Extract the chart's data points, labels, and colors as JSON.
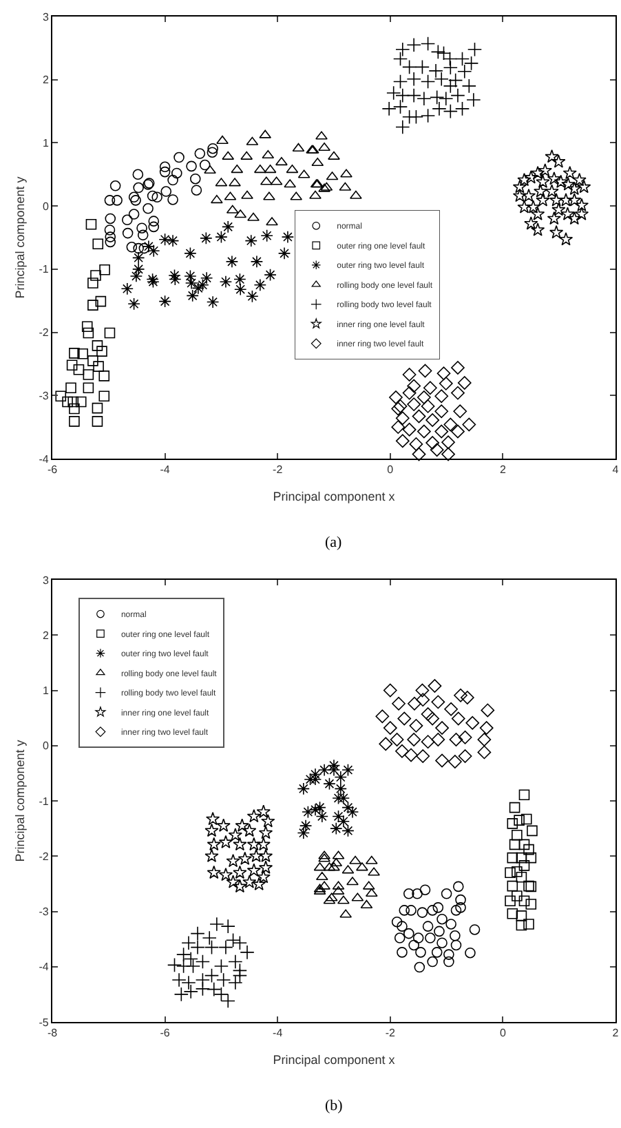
{
  "chart_data": [
    {
      "type": "scatter",
      "xlabel": "Principal component x",
      "ylabel": "Principal component y",
      "annotations": [
        "(a)"
      ],
      "xlim": [
        -6,
        4
      ],
      "xticks": [
        -6,
        -4,
        -2,
        0,
        2,
        4
      ],
      "ylim": [
        -4,
        3
      ],
      "yticks": [
        -4,
        -3,
        -2,
        -1,
        0,
        1,
        2,
        3
      ],
      "grid": false,
      "legend": "center",
      "series": [
        {
          "name": "normal",
          "color": "#000000",
          "marker": "circle",
          "x": [
            -4.88,
            -4.98,
            -4.85,
            -4.97,
            -4.98,
            -4.97,
            -4.97,
            -4.67,
            -4.66,
            -4.59,
            -4.55,
            -4.52,
            -4.48,
            -4.47,
            -4.41,
            -4.39,
            -4.3,
            -4.3,
            -4.28,
            -4.22,
            -4.14,
            -4.2,
            -4.2,
            -4.0,
            -4.0,
            -3.98,
            -3.86,
            -3.86,
            -3.79,
            -3.75,
            -3.53,
            -3.46,
            -3.44,
            -3.38,
            -3.29,
            -3.16,
            -3.15,
            -4.47,
            -4.37,
            -4.55
          ],
          "values": [
            0.32,
            0.09,
            0.09,
            -0.2,
            -0.38,
            -0.49,
            -0.57,
            -0.22,
            -0.43,
            -0.65,
            -0.13,
            0.09,
            0.5,
            0.29,
            -0.35,
            -0.46,
            0.34,
            -0.04,
            0.36,
            0.16,
            0.14,
            -0.24,
            -0.33,
            0.62,
            0.54,
            0.23,
            0.1,
            0.41,
            0.52,
            0.77,
            0.63,
            0.43,
            0.25,
            0.83,
            0.65,
            0.85,
            0.91,
            -0.67,
            -0.67,
            0.14
          ]
        },
        {
          "name": "outer ring one level fault",
          "color": "#000000",
          "marker": "square",
          "x": [
            -5.31,
            -5.19,
            -5.07,
            -5.23,
            -5.28,
            -5.28,
            -5.14,
            -5.38,
            -5.36,
            -4.98,
            -5.61,
            -5.2,
            -5.12,
            -5.46,
            -5.65,
            -5.28,
            -5.53,
            -5.36,
            -5.18,
            -5.08,
            -5.08,
            -5.85,
            -5.73,
            -5.63,
            -5.49,
            -5.61,
            -5.2,
            -5.61,
            -5.2,
            -5.67,
            -5.36
          ],
          "values": [
            -0.29,
            -0.6,
            -1.01,
            -1.1,
            -1.22,
            -1.57,
            -1.51,
            -1.91,
            -2.01,
            -2.01,
            -2.33,
            -2.21,
            -2.3,
            -2.34,
            -2.52,
            -2.45,
            -2.59,
            -2.67,
            -2.54,
            -2.69,
            -3.01,
            -3.01,
            -3.1,
            -3.1,
            -3.1,
            -3.21,
            -3.2,
            -3.41,
            -3.41,
            -2.88,
            -2.88
          ]
        },
        {
          "name": "outer ring two level fault",
          "color": "#000000",
          "x": [
            -4.67,
            -4.55,
            -4.51,
            -4.47,
            -4.47,
            -4.29,
            -4.2,
            -4.22,
            -4.21,
            -4.0,
            -4.0,
            -3.86,
            -3.83,
            -3.82,
            -3.55,
            -3.55,
            -3.53,
            -3.51,
            -3.41,
            -3.33,
            -3.26,
            -3.27,
            -3.15,
            -3.0,
            -2.92,
            -2.88,
            -2.81,
            -2.67,
            -2.66,
            -2.47,
            -2.45,
            -2.37,
            -2.31,
            -2.19,
            -2.13,
            -1.88,
            -1.82
          ],
          "values": [
            -1.31,
            -1.55,
            -1.11,
            -1.0,
            -0.82,
            -0.64,
            -0.71,
            -1.16,
            -1.2,
            -1.51,
            -0.53,
            -0.55,
            -1.1,
            -1.16,
            -0.75,
            -1.11,
            -1.22,
            -1.42,
            -1.3,
            -1.25,
            -1.14,
            -0.51,
            -1.52,
            -0.49,
            -1.2,
            -0.33,
            -0.88,
            -1.16,
            -1.32,
            -0.55,
            -1.43,
            -0.88,
            -1.25,
            -0.47,
            -1.09,
            -0.75,
            -0.49
          ]
        },
        {
          "name": "rolling body one level fault",
          "color": "#000000",
          "marker": "triangle",
          "x": [
            -2.98,
            -2.45,
            -2.22,
            -1.22,
            -2.88,
            -2.55,
            -2.17,
            -1.63,
            -1.37,
            -3.2,
            -2.72,
            -2.31,
            -2.13,
            -1.93,
            -1.74,
            -1.29,
            -3.0,
            -2.76,
            -2.2,
            -2.02,
            -1.78,
            -1.29,
            -3.08,
            -2.84,
            -2.54,
            -2.15,
            -1.67,
            -1.33,
            -2.8,
            -2.66,
            -2.43,
            -2.1,
            -1.17,
            -1.39,
            -1.17,
            -1.0,
            -1.53,
            -1.03,
            -0.78,
            -1.31,
            -1.13,
            -0.8,
            -0.61
          ],
          "values": [
            1.03,
            1.01,
            1.12,
            1.1,
            0.78,
            0.78,
            0.8,
            0.91,
            0.88,
            0.56,
            0.57,
            0.57,
            0.57,
            0.69,
            0.57,
            0.68,
            0.36,
            0.36,
            0.38,
            0.38,
            0.34,
            0.34,
            0.09,
            0.14,
            0.16,
            0.14,
            0.14,
            0.16,
            -0.07,
            -0.14,
            -0.19,
            -0.26,
            0.27,
            0.88,
            0.92,
            0.78,
            0.49,
            0.46,
            0.5,
            0.34,
            0.29,
            0.29,
            0.16
          ]
        },
        {
          "name": "rolling body two level fault",
          "color": "#000000",
          "marker": "cross",
          "x": [
            0.22,
            0.42,
            0.67,
            0.85,
            1.06,
            1.28,
            1.5,
            0.18,
            0.34,
            0.57,
            0.81,
            1.07,
            1.32,
            1.44,
            0.18,
            0.42,
            0.67,
            0.91,
            1.16,
            1.4,
            0.06,
            0.22,
            0.42,
            0.6,
            0.83,
            0.99,
            1.2,
            1.48,
            -0.02,
            0.18,
            0.34,
            0.46,
            0.67,
            0.87,
            1.07,
            1.28,
            0.22,
            0.95,
            1.07
          ],
          "values": [
            2.48,
            2.55,
            2.57,
            2.44,
            2.33,
            2.33,
            2.48,
            2.33,
            2.2,
            2.2,
            2.14,
            2.19,
            2.13,
            2.26,
            1.97,
            2.01,
            1.97,
            2.01,
            1.99,
            1.9,
            1.79,
            1.75,
            1.75,
            1.7,
            1.72,
            1.7,
            1.75,
            1.68,
            1.54,
            1.57,
            1.41,
            1.41,
            1.43,
            1.54,
            1.5,
            1.54,
            1.25,
            2.42,
            1.9
          ]
        },
        {
          "name": "inner ring one level fault",
          "color": "#000000",
          "marker": "star",
          "x": [
            2.87,
            2.99,
            3.19,
            3.36,
            3.44,
            2.3,
            2.38,
            2.5,
            2.62,
            2.75,
            2.71,
            2.91,
            3.03,
            3.16,
            3.27,
            2.3,
            2.46,
            2.67,
            2.87,
            2.71,
            2.95,
            3.12,
            3.27,
            3.4,
            3.4,
            3.15,
            2.99,
            2.91,
            2.62,
            2.5,
            2.62,
            2.95,
            3.12,
            3.27,
            2.54,
            2.38
          ],
          "values": [
            0.78,
            0.7,
            0.52,
            0.41,
            0.3,
            0.3,
            0.41,
            0.45,
            0.52,
            0.56,
            0.38,
            0.43,
            0.38,
            0.34,
            0.27,
            0.16,
            0.16,
            0.23,
            0.23,
            0.09,
            0.09,
            0.09,
            0.09,
            0.01,
            -0.13,
            -0.13,
            -0.06,
            -0.2,
            -0.13,
            -0.28,
            -0.38,
            -0.42,
            -0.53,
            -0.2,
            -0.02,
            -0.02
          ]
        },
        {
          "name": "inner ring two level fault",
          "color": "#000000",
          "marker": "diamond",
          "x": [
            0.34,
            0.62,
            0.95,
            1.2,
            0.42,
            0.71,
            0.99,
            1.32,
            0.1,
            0.34,
            0.6,
            0.91,
            1.2,
            0.14,
            0.42,
            0.67,
            0.91,
            1.24,
            0.22,
            0.51,
            0.75,
            1.07,
            1.4,
            0.14,
            0.34,
            0.6,
            0.91,
            1.2,
            0.22,
            0.46,
            0.75,
            1.03,
            0.51,
            0.83,
            1.03,
            0.18
          ],
          "values": [
            -2.67,
            -2.61,
            -2.65,
            -2.56,
            -2.85,
            -2.88,
            -2.81,
            -2.8,
            -3.03,
            -2.96,
            -3.03,
            -3.01,
            -2.96,
            -3.21,
            -3.14,
            -3.17,
            -3.25,
            -3.25,
            -3.36,
            -3.33,
            -3.39,
            -3.46,
            -3.46,
            -3.5,
            -3.54,
            -3.57,
            -3.57,
            -3.57,
            -3.72,
            -3.77,
            -3.75,
            -3.74,
            -3.93,
            -3.86,
            -3.93,
            -3.17
          ]
        }
      ]
    },
    {
      "type": "scatter",
      "xlabel": "Principal component x",
      "ylabel": "Principal component y",
      "annotations": [
        "(b)"
      ],
      "xlim": [
        -8,
        2
      ],
      "xticks": [
        -8,
        -6,
        -4,
        -2,
        0,
        2
      ],
      "ylim": [
        -5,
        3
      ],
      "yticks": [
        -5,
        -4,
        -3,
        -2,
        -1,
        0,
        1,
        2,
        3
      ],
      "grid": false,
      "legend": "top left",
      "series": [
        {
          "name": "normal",
          "color": "#000000",
          "marker": "circle",
          "x": [
            -1.88,
            -1.79,
            -1.83,
            -1.79,
            -1.67,
            -1.63,
            -1.67,
            -1.58,
            -1.52,
            -1.46,
            -1.38,
            -1.43,
            -1.33,
            -1.29,
            -1.25,
            -1.15,
            -1.08,
            -1.13,
            -1.08,
            -1.0,
            -0.92,
            -0.96,
            -0.85,
            -0.83,
            -0.79,
            -0.75,
            -0.75,
            -0.96,
            -1.25,
            -1.48,
            -0.5,
            -0.58,
            -1.75,
            -1.5,
            -1.17,
            -0.83
          ],
          "values": [
            -3.19,
            -3.27,
            -3.48,
            -3.74,
            -2.68,
            -2.98,
            -3.4,
            -3.61,
            -2.68,
            -3.74,
            -2.61,
            -3.02,
            -3.27,
            -3.48,
            -2.98,
            -2.93,
            -3.14,
            -3.36,
            -3.57,
            -2.68,
            -3.23,
            -3.78,
            -3.44,
            -3.61,
            -2.55,
            -2.79,
            -2.93,
            -3.91,
            -3.91,
            -4.01,
            -3.33,
            -3.75,
            -2.98,
            -3.48,
            -3.74,
            -2.98
          ]
        },
        {
          "name": "outer ring one level fault",
          "color": "#000000",
          "marker": "square",
          "x": [
            0.38,
            0.21,
            0.17,
            0.29,
            0.42,
            0.52,
            0.25,
            0.38,
            0.46,
            0.17,
            0.33,
            0.5,
            0.13,
            0.25,
            0.46,
            0.17,
            0.33,
            0.5,
            0.25,
            0.13,
            0.38,
            0.5,
            0.17,
            0.33,
            0.46,
            0.33,
            0.21,
            0.38
          ],
          "values": [
            -0.89,
            -1.12,
            -1.41,
            -1.35,
            -1.33,
            -1.54,
            -1.62,
            -1.79,
            -1.88,
            -2.03,
            -2.03,
            -2.03,
            -2.3,
            -2.28,
            -2.54,
            -2.54,
            -2.38,
            -2.55,
            -2.72,
            -2.81,
            -2.81,
            -2.87,
            -3.04,
            -3.08,
            -3.23,
            -3.25,
            -1.79,
            -2.17
          ]
        },
        {
          "name": "outer ring two level fault",
          "color": "#000000",
          "x": [
            -3.54,
            -3.42,
            -3.33,
            -3.17,
            -3.0,
            -3.46,
            -3.33,
            -3.21,
            -3.5,
            -3.54,
            -3.08,
            -2.92,
            -2.92,
            -3.25,
            -3.0,
            -2.88,
            -2.75,
            -2.88,
            -2.83,
            -2.75,
            -2.67,
            -2.83,
            -2.75,
            -2.96,
            -3.33
          ],
          "values": [
            -0.78,
            -0.61,
            -0.52,
            -0.44,
            -0.36,
            -1.2,
            -1.16,
            -1.28,
            -1.45,
            -1.58,
            -0.69,
            -0.95,
            -1.28,
            -1.12,
            -0.44,
            -0.57,
            -0.44,
            -0.78,
            -0.95,
            -1.12,
            -1.2,
            -1.37,
            -1.54,
            -1.5,
            -0.61
          ]
        },
        {
          "name": "rolling body one level fault",
          "color": "#000000",
          "marker": "triangle",
          "x": [
            -3.17,
            -3.08,
            -3.21,
            -3.25,
            -3.08,
            -2.96,
            -2.92,
            -3.17,
            -2.92,
            -2.62,
            -2.33,
            -3.25,
            -3.0,
            -2.75,
            -2.5,
            -2.29,
            -3.17,
            -2.92,
            -2.67,
            -2.38,
            -3.25,
            -3.04,
            -2.83,
            -2.58,
            -2.33,
            -2.79,
            -2.42
          ],
          "values": [
            -2.05,
            -2.21,
            -2.38,
            -2.6,
            -2.81,
            -2.13,
            -2.64,
            -2.0,
            -2.0,
            -2.09,
            -2.09,
            -2.21,
            -2.21,
            -2.26,
            -2.21,
            -2.3,
            -2.55,
            -2.55,
            -2.47,
            -2.55,
            -2.64,
            -2.76,
            -2.81,
            -2.76,
            -2.68,
            -3.06,
            -2.89
          ]
        },
        {
          "name": "rolling body two level fault",
          "color": "#000000",
          "marker": "cross",
          "x": [
            -5.08,
            -4.88,
            -5.42,
            -5.21,
            -4.79,
            -5.58,
            -5.42,
            -5.17,
            -4.92,
            -4.67,
            -4.54,
            -5.67,
            -5.54,
            -5.33,
            -5.67,
            -5.5,
            -5.0,
            -4.75,
            -4.67,
            -5.75,
            -5.58,
            -5.33,
            -5.17,
            -4.96,
            -4.75,
            -4.67,
            -5.71,
            -5.54,
            -5.33,
            -5.13,
            -5.0,
            -4.88,
            -5.83
          ],
          "values": [
            -3.23,
            -3.27,
            -3.4,
            -3.48,
            -3.52,
            -3.57,
            -3.65,
            -3.65,
            -3.65,
            -3.57,
            -3.74,
            -3.78,
            -3.86,
            -3.91,
            -3.99,
            -3.99,
            -3.99,
            -3.91,
            -4.07,
            -4.24,
            -4.29,
            -4.24,
            -4.16,
            -4.24,
            -4.29,
            -4.16,
            -4.5,
            -4.45,
            -4.4,
            -4.41,
            -4.5,
            -4.62,
            -3.97
          ]
        },
        {
          "name": "inner ring one level fault",
          "color": "#000000",
          "marker": "star",
          "x": [
            -5.15,
            -5.17,
            -4.96,
            -4.75,
            -4.63,
            -4.5,
            -4.25,
            -4.17,
            -4.21,
            -5.13,
            -4.92,
            -4.67,
            -4.42,
            -4.25,
            -5.17,
            -4.79,
            -4.58,
            -4.38,
            -4.21,
            -5.13,
            -4.92,
            -4.67,
            -4.42,
            -4.21,
            -4.79,
            -4.67,
            -4.5,
            -4.33,
            -4.25,
            -4.42
          ],
          "values": [
            -1.33,
            -1.54,
            -1.45,
            -1.62,
            -1.45,
            -1.54,
            -1.2,
            -1.37,
            -1.58,
            -1.79,
            -1.75,
            -1.79,
            -1.79,
            -1.79,
            -2.0,
            -2.09,
            -2.05,
            -2.0,
            -2.0,
            -2.3,
            -2.34,
            -2.3,
            -2.26,
            -2.21,
            -2.47,
            -2.55,
            -2.47,
            -2.51,
            -2.38,
            -1.28
          ]
        },
        {
          "name": "inner ring two level fault",
          "color": "#000000",
          "marker": "diamond",
          "x": [
            -2.0,
            -1.85,
            -1.57,
            -1.43,
            -1.21,
            -1.15,
            -1.33,
            -0.92,
            -0.75,
            -0.63,
            -0.27,
            -2.14,
            -2.0,
            -1.75,
            -1.54,
            -1.25,
            -1.08,
            -0.79,
            -0.54,
            -0.29,
            -2.08,
            -1.88,
            -1.58,
            -1.33,
            -1.15,
            -0.83,
            -0.67,
            -0.33,
            -1.79,
            -1.63,
            -1.42,
            -1.08,
            -0.85,
            -0.67,
            -0.33,
            -1.42
          ],
          "values": [
            1.0,
            0.76,
            0.76,
            1.0,
            1.08,
            0.79,
            0.57,
            0.66,
            0.91,
            0.87,
            0.64,
            0.53,
            0.32,
            0.49,
            0.36,
            0.49,
            0.32,
            0.49,
            0.41,
            0.32,
            0.03,
            0.11,
            0.11,
            0.07,
            0.11,
            0.11,
            0.15,
            0.11,
            -0.1,
            -0.17,
            -0.19,
            -0.27,
            -0.29,
            -0.19,
            -0.12,
            0.83
          ]
        }
      ]
    }
  ]
}
